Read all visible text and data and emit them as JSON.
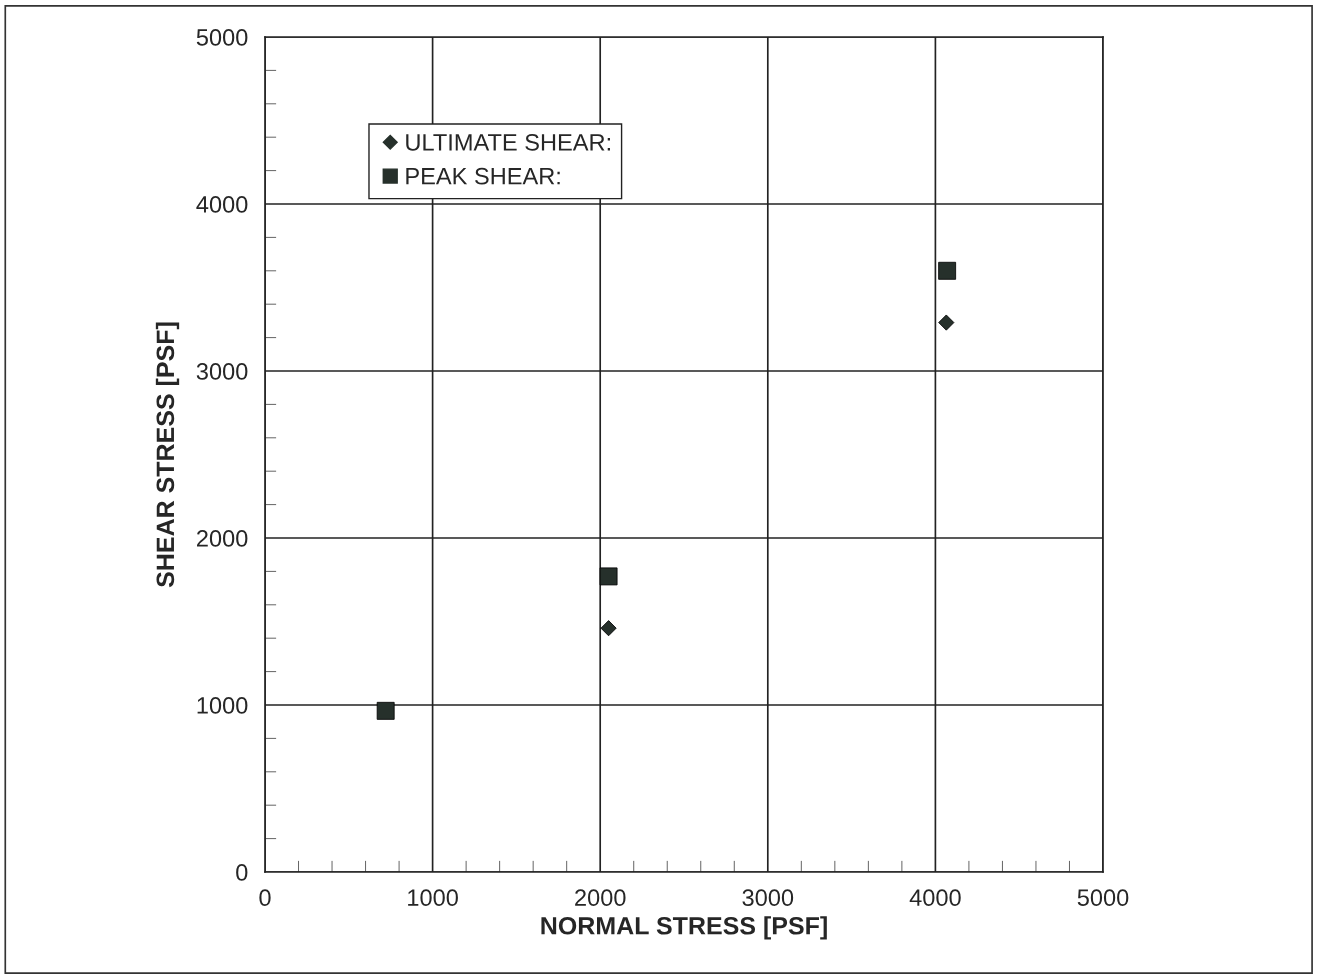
{
  "chart_data": {
    "type": "scatter",
    "xlabel": "NORMAL STRESS [PSF]",
    "ylabel": "SHEAR STRESS [PSF]",
    "series": [
      {
        "name": "ULTIMATE SHEAR:",
        "color": "#26302b",
        "marker": "diamond",
        "x": [
          2050,
          4065
        ],
        "values": [
          1460,
          3290
        ]
      },
      {
        "name": "PEAK SHEAR:",
        "color": "#26302b",
        "marker": "square",
        "x": [
          720,
          2050,
          4070
        ],
        "values": [
          965,
          1770,
          3600
        ]
      }
    ],
    "xlim": [
      0,
      5000
    ],
    "ylim": [
      0,
      5000
    ],
    "xticks": [
      0,
      1000,
      2000,
      3000,
      4000,
      5000
    ],
    "yticks": [
      0,
      1000,
      2000,
      3000,
      4000,
      5000
    ],
    "grid": true,
    "legend": "top left"
  }
}
